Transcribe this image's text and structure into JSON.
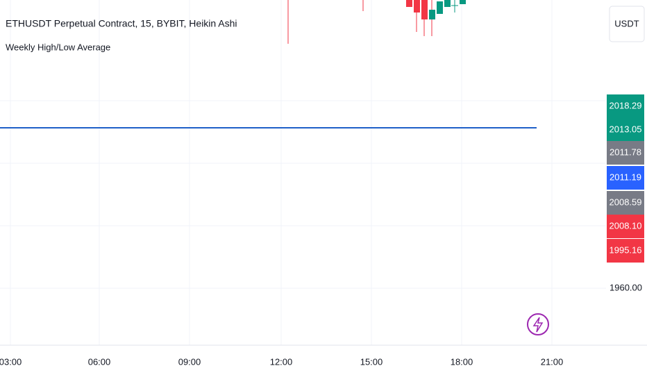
{
  "header": {
    "title": "ETHUSDT Perpetual Contract, 15, BYBIT, Heikin Ashi",
    "indicator": "Weekly High/Low Average"
  },
  "currency_button": "USDT",
  "price_labels": [
    {
      "text": "2018.29",
      "color": "#089981"
    },
    {
      "text": "2013.05",
      "color": "#089981"
    },
    {
      "text": "2011.78",
      "color": "#787b86"
    },
    {
      "text": "2011.19",
      "color": "#2962ff"
    },
    {
      "text": "2008.59",
      "color": "#787b86"
    },
    {
      "text": "2008.10",
      "color": "#f23645"
    },
    {
      "text": "1995.16",
      "color": "#f23645"
    }
  ],
  "price_axis_tick": "1960.00",
  "time_axis": [
    "03:00",
    "06:00",
    "09:00",
    "12:00",
    "15:00",
    "18:00",
    "21:00"
  ]
}
